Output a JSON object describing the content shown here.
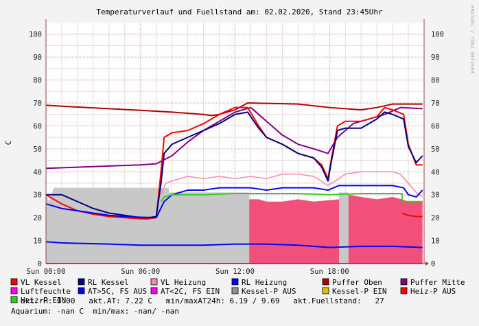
{
  "title": "Temperaturverlauf und Fuellstand am: 02.02.2020, Stand 23:45Uhr",
  "side_text": "RRDTOOL / TOBI OETIKER",
  "ylabel": "C",
  "colors": {
    "background": "#f3f3f3",
    "plot_bg": "#ffffff",
    "grid_major": "#e6a6a6",
    "grid_minor": "#f1d6d6",
    "axis": "#a04040",
    "vl_kessel": "#ff0000",
    "rl_kessel": "#000080",
    "vl_heizung": "#ff88aa",
    "rl_heizung": "#0000ff",
    "puffer_oben": "#b00000",
    "puffer_mitte": "#800080",
    "luftfeuchte": "#ff00ff",
    "at_gt5": "#0000ff",
    "at_lt2": "#ff00ff",
    "kessel_p_aus": "#c8c8c8",
    "kessel_p_ein": "#e0c000",
    "heiz_p_aus": "#f0507a",
    "heiz_p_ein": "#33cc22"
  },
  "legend": [
    {
      "label": "VL Kessel",
      "color": "#ff0000"
    },
    {
      "label": "RL Kessel",
      "color": "#000080"
    },
    {
      "label": "VL Heizung",
      "color": "#ff88aa"
    },
    {
      "label": "RL Heizung",
      "color": "#0000ff"
    },
    {
      "label": "Puffer Oben",
      "color": "#b00000"
    },
    {
      "label": "Puffer Mitte",
      "color": "#800080"
    },
    {
      "label": "Luftfeuchte",
      "color": "#ff00ff"
    },
    {
      "label": "AT>5C, FS AUS",
      "color": "#0000ff"
    },
    {
      "label": "AT<2C, FS EIN",
      "color": "#ff00ff"
    },
    {
      "label": "Kessel-P AUS",
      "color": "#909090"
    },
    {
      "label": "Kessel-P EIN",
      "color": "#e0c000"
    },
    {
      "label": "Heiz-P AUS",
      "color": "#ff0000"
    },
    {
      "label": "Heiz-P EIN",
      "color": "#33cc22"
    }
  ],
  "stats_line1": "akt.rH: 0.00   akt.AT: 7.22 C   min/maxAT24h: 6.19 / 9.69   akt.Fuellstand:   27",
  "stats_line2": "Aquarium: -nan C  min/max: -nan/ -nan",
  "chart_data": {
    "type": "line",
    "title": "Temperaturverlauf und Fuellstand am: 02.02.2020, Stand 23:45Uhr",
    "ylabel": "C",
    "ylim": [
      0,
      105
    ],
    "y_ticks": [
      0,
      10,
      20,
      30,
      40,
      50,
      60,
      70,
      80,
      90,
      100
    ],
    "xlim": [
      0,
      24
    ],
    "x_unit": "hours",
    "x_ticks": [
      {
        "x": 0,
        "label": "Sun 00:00"
      },
      {
        "x": 6,
        "label": "Sun 06:00"
      },
      {
        "x": 12,
        "label": "Sun 12:00"
      },
      {
        "x": 18,
        "label": "Sun 18:00"
      }
    ],
    "grid": true,
    "legend_position": "bottom",
    "areas": [
      {
        "name": "Kessel-P AUS",
        "color": "#c8c8c8",
        "x": [
          0,
          0.2,
          0.5,
          1,
          2,
          3,
          4,
          5,
          6,
          7.8,
          7.8,
          12.9,
          12.9,
          18.6,
          18.6,
          19.2,
          19.2,
          23.9
        ],
        "y": [
          30,
          27,
          33,
          33,
          33,
          33,
          33,
          33,
          33,
          33,
          31,
          31,
          0,
          0,
          31,
          31,
          0,
          0
        ]
      },
      {
        "name": "Heiz-P AUS",
        "color": "#f0507a",
        "x": [
          12.9,
          13.5,
          14,
          15,
          16,
          17,
          18.6,
          18.6,
          19.2,
          19.2,
          20,
          21,
          22,
          22.6,
          23,
          23.5,
          23.9
        ],
        "y": [
          28,
          28,
          27,
          27,
          28,
          27,
          28,
          0,
          0,
          30,
          29,
          28,
          29,
          28,
          27,
          27,
          27
        ]
      }
    ],
    "series": [
      {
        "name": "Puffer Oben",
        "color": "#b00000",
        "width": 2,
        "x": [
          0,
          2,
          4,
          6,
          8,
          10,
          10.5,
          11,
          12,
          12.8,
          14,
          16,
          18,
          20,
          21,
          22,
          23,
          23.9
        ],
        "y": [
          69,
          68.2,
          67.5,
          66.8,
          66,
          65,
          64.5,
          65,
          67,
          70,
          69.8,
          69.5,
          68,
          67,
          68,
          69.5,
          69.5,
          69.5
        ]
      },
      {
        "name": "Puffer Mitte",
        "color": "#800080",
        "width": 2,
        "x": [
          0,
          2,
          4,
          6,
          7,
          8,
          9,
          10,
          11,
          12,
          13,
          14,
          15,
          16,
          17,
          17.9,
          18.5,
          19.5,
          20.5,
          21.5,
          22.5,
          23.9
        ],
        "y": [
          41.5,
          42,
          42.5,
          43,
          43.5,
          47,
          53,
          58,
          62,
          66,
          68,
          62,
          56,
          52,
          50,
          48,
          55,
          61,
          63,
          65,
          68,
          67.5
        ]
      },
      {
        "name": "VL Kessel",
        "color": "#ff0000",
        "width": 2,
        "x": [
          0,
          1,
          2,
          3,
          4,
          5,
          6,
          6.5,
          7,
          7.3,
          7.5,
          8,
          9,
          10,
          11,
          12,
          12.8,
          13.5,
          14,
          15,
          16,
          17,
          17.5,
          17.9,
          18.1,
          18.5,
          19,
          20,
          21,
          21.5,
          22,
          22.7,
          23,
          23.5,
          23.9
        ],
        "y": [
          30,
          26,
          23,
          21.5,
          20.5,
          20,
          19.5,
          19.5,
          20,
          40,
          55,
          57,
          58,
          61,
          65,
          68,
          68,
          60,
          55,
          52,
          48,
          46,
          43,
          37,
          45,
          60,
          62,
          62,
          64,
          68,
          67,
          65,
          52,
          43,
          43
        ]
      },
      {
        "name": "RL Kessel",
        "color": "#000080",
        "width": 2,
        "x": [
          0,
          0.5,
          1,
          2,
          3,
          4,
          5,
          6,
          6.5,
          7,
          7.3,
          7.5,
          8,
          9,
          10,
          11,
          12,
          12.8,
          13.5,
          14,
          15,
          16,
          17,
          17.5,
          17.9,
          18.1,
          18.5,
          19,
          20,
          21,
          21.5,
          22,
          22.7,
          23,
          23.5,
          23.9
        ],
        "y": [
          30,
          30,
          30,
          27,
          24,
          22,
          21,
          20,
          20,
          20.5,
          35,
          48,
          52,
          55,
          58,
          61,
          65,
          66,
          59,
          55,
          52,
          48,
          46,
          42,
          36,
          44,
          58,
          59,
          59,
          63,
          66,
          65,
          63,
          51,
          44,
          47
        ]
      },
      {
        "name": "VL Heizung",
        "color": "#ff88aa",
        "width": 1.5,
        "x": [
          7.3,
          7.6,
          8,
          9,
          10,
          11,
          12,
          13,
          14,
          15,
          16,
          17,
          17.9,
          18.6,
          19,
          20,
          21,
          22,
          22.5,
          23,
          23.5,
          23.9
        ],
        "y": [
          30,
          35,
          36,
          38,
          37,
          38,
          37,
          38,
          37,
          39,
          39,
          38,
          34,
          37,
          39,
          40,
          40,
          40,
          39,
          35,
          31,
          29
        ]
      },
      {
        "name": "RL Heizung",
        "color": "#0000ff",
        "width": 2,
        "x": [
          0,
          1,
          2,
          3,
          4,
          5,
          6,
          7,
          7.5,
          8,
          9,
          10,
          11,
          12,
          13,
          14,
          15,
          16,
          17,
          17.9,
          18.6,
          19,
          20,
          21,
          22,
          22.7,
          23,
          23.5,
          23.9
        ],
        "y": [
          26,
          24,
          23,
          22,
          21,
          20.5,
          20.2,
          20,
          27,
          30,
          32,
          32,
          33,
          33,
          33,
          32,
          33,
          33,
          33,
          32,
          34,
          34,
          34,
          34,
          34,
          33,
          30,
          29,
          32
        ]
      },
      {
        "name": "Heiz-P EIN",
        "color": "#33cc22",
        "width": 2,
        "x": [
          7.3,
          7.5,
          8,
          10,
          12,
          14,
          16,
          18,
          20,
          21,
          22.6,
          22.6,
          23.9
        ],
        "y": [
          27,
          29,
          30,
          30,
          30.5,
          30.5,
          30.5,
          30,
          30.5,
          30.5,
          30.5,
          27,
          27
        ]
      },
      {
        "name": "Heiz-P AUS",
        "color": "#ff0000",
        "width": 2,
        "x": [
          22.6,
          23,
          23.5,
          23.9
        ],
        "y": [
          22,
          21,
          20.5,
          20.5
        ]
      },
      {
        "name": "AT>5C, FS AUS",
        "color": "#0000ff",
        "width": 2,
        "x": [
          0,
          1,
          2,
          4,
          6,
          8,
          10,
          12,
          14,
          16,
          18,
          20,
          22,
          23.9
        ],
        "y": [
          9.5,
          9,
          8.8,
          8.5,
          8,
          8,
          8,
          8.5,
          8.5,
          8,
          7,
          7.5,
          7.5,
          7
        ]
      },
      {
        "name": "Luftfeuchte",
        "color": "#ff00ff",
        "width": 2,
        "x": [
          0,
          23.9
        ],
        "y": [
          0,
          0
        ]
      }
    ]
  }
}
